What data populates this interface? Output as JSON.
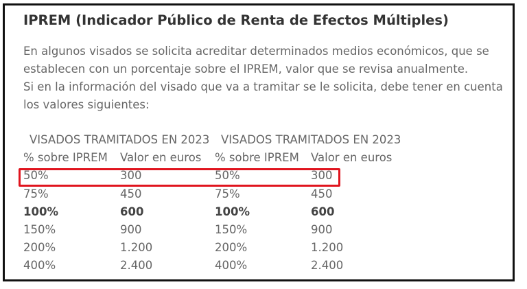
{
  "title": "IPREM (Indicador Público de Renta de Efectos Múltiples)",
  "paragraph": [
    "En algunos visados se solicita acreditar determinados medios económicos, que se",
    "establecen con un porcentaje sobre el IPREM, valor que se revisa anualmente.",
    "Si en la información del visado que va a tramitar se le solicita, debe tener en cuenta",
    "los valores siguientes:"
  ],
  "table": {
    "group_headers": [
      "VISADOS TRAMITADOS EN 2023",
      "VISADOS TRAMITADOS EN 2023"
    ],
    "column_headers": [
      "% sobre IPREM",
      "Valor en euros",
      "% sobre IPREM",
      "Valor en euros"
    ],
    "rows": [
      [
        "50%",
        "300",
        "50%",
        "300"
      ],
      [
        "75%",
        "450",
        "75%",
        "450"
      ],
      [
        "100%",
        "600",
        "100%",
        "600"
      ],
      [
        "150%",
        "900",
        "150%",
        "900"
      ],
      [
        "200%",
        "1.200",
        "200%",
        "1.200"
      ],
      [
        "400%",
        "2.400",
        "400%",
        "2.400"
      ]
    ],
    "bold_row_index": 2,
    "highlighted_row_index": 0,
    "highlight_color": "#e0141e"
  }
}
